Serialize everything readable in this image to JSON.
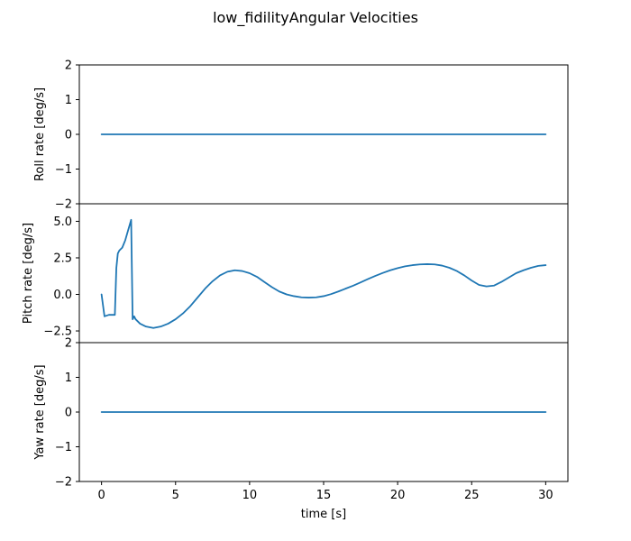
{
  "figure": {
    "title": "low_fidilityAngular Velocities"
  },
  "colors": {
    "series": "#1f77b4",
    "axes": "#000000",
    "background": "#ffffff"
  },
  "chart_data": {
    "type": "line",
    "title": "low_fidilityAngular Velocities",
    "xlabel": "time [s]",
    "xlim": [
      -1.5,
      31.5
    ],
    "xticks": [
      0,
      5,
      10,
      15,
      20,
      25,
      30
    ],
    "xtick_labels": [
      "0",
      "5",
      "10",
      "15",
      "20",
      "25",
      "30"
    ],
    "grid": false,
    "subplots": [
      {
        "ylabel": "Roll rate [deg/s]",
        "ylim": [
          -2,
          2
        ],
        "yticks": [
          -2,
          -1,
          0,
          1,
          2
        ],
        "ytick_labels": [
          "−2",
          "−1",
          "0",
          "1",
          "2"
        ],
        "x": [
          0,
          30
        ],
        "y": [
          0,
          0
        ]
      },
      {
        "ylabel": "Pitch rate [deg/s]",
        "ylim": [
          -3.3,
          6.2
        ],
        "yticks": [
          -2.5,
          0.0,
          2.5,
          5.0
        ],
        "ytick_labels": [
          "−2.5",
          "0.0",
          "2.5",
          "5.0"
        ],
        "x": [
          0,
          0.2,
          0.5,
          0.9,
          1.0,
          1.1,
          1.2,
          1.4,
          1.6,
          1.8,
          2.0,
          2.1,
          2.2,
          2.3,
          2.6,
          3.0,
          3.5,
          4.0,
          4.5,
          5.0,
          5.5,
          6.0,
          6.5,
          7.0,
          7.5,
          8.0,
          8.5,
          9.0,
          9.5,
          10.0,
          10.5,
          11.0,
          11.5,
          12.0,
          12.5,
          13.0,
          13.5,
          14.0,
          14.5,
          15.0,
          15.5,
          16.0,
          16.5,
          17.0,
          17.5,
          18.0,
          18.5,
          19.0,
          19.5,
          20.0,
          20.5,
          21.0,
          21.5,
          22.0,
          22.5,
          23.0,
          23.5,
          24.0,
          24.5,
          25.0,
          25.5,
          26.0,
          26.5,
          27.0,
          27.5,
          28.0,
          28.5,
          29.0,
          29.5,
          30.0
        ],
        "y": [
          0.0,
          -1.5,
          -1.4,
          -1.4,
          1.8,
          2.8,
          3.0,
          3.2,
          3.7,
          4.4,
          5.1,
          -1.7,
          -1.5,
          -1.7,
          -2.0,
          -2.2,
          -2.3,
          -2.2,
          -2.0,
          -1.7,
          -1.3,
          -0.8,
          -0.2,
          0.4,
          0.9,
          1.3,
          1.55,
          1.65,
          1.6,
          1.45,
          1.2,
          0.85,
          0.5,
          0.2,
          0.0,
          -0.12,
          -0.2,
          -0.22,
          -0.2,
          -0.12,
          0.02,
          0.2,
          0.4,
          0.6,
          0.82,
          1.05,
          1.27,
          1.47,
          1.65,
          1.8,
          1.92,
          2.0,
          2.05,
          2.07,
          2.05,
          1.97,
          1.82,
          1.6,
          1.3,
          0.95,
          0.65,
          0.55,
          0.6,
          0.85,
          1.15,
          1.45,
          1.65,
          1.82,
          1.95,
          2.0
        ]
      },
      {
        "ylabel": "Yaw rate [deg/s]",
        "ylim": [
          -2,
          2
        ],
        "yticks": [
          -2,
          -1,
          0,
          1,
          2
        ],
        "ytick_labels": [
          "−2",
          "−1",
          "0",
          "1",
          "2"
        ],
        "x": [
          0,
          30
        ],
        "y": [
          0,
          0
        ]
      }
    ]
  }
}
